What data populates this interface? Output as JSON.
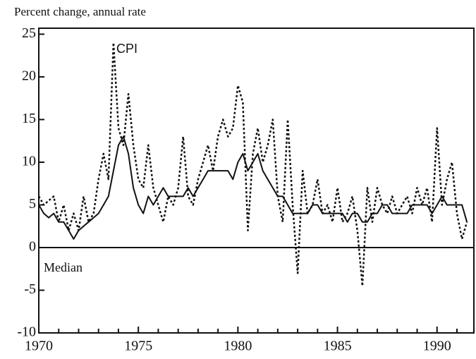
{
  "chart_data": {
    "type": "line",
    "y_label": "Percent change, annual rate",
    "annotations": [
      "CPI",
      "Median"
    ],
    "x": [
      1970,
      1970.25,
      1970.5,
      1970.75,
      1971,
      1971.25,
      1971.5,
      1971.75,
      1972,
      1972.25,
      1972.5,
      1972.75,
      1973,
      1973.25,
      1973.5,
      1973.75,
      1974,
      1974.25,
      1974.5,
      1974.75,
      1975,
      1975.25,
      1975.5,
      1975.75,
      1976,
      1976.25,
      1976.5,
      1976.75,
      1977,
      1977.25,
      1977.5,
      1977.75,
      1978,
      1978.25,
      1978.5,
      1978.75,
      1979,
      1979.25,
      1979.5,
      1979.75,
      1980,
      1980.25,
      1980.5,
      1980.75,
      1981,
      1981.25,
      1981.5,
      1981.75,
      1982,
      1982.25,
      1982.5,
      1982.75,
      1983,
      1983.25,
      1983.5,
      1983.75,
      1984,
      1984.25,
      1984.5,
      1984.75,
      1985,
      1985.25,
      1985.5,
      1985.75,
      1986,
      1986.25,
      1986.5,
      1986.75,
      1987,
      1987.25,
      1987.5,
      1987.75,
      1988,
      1988.25,
      1988.5,
      1988.75,
      1989,
      1989.25,
      1989.5,
      1989.75,
      1990,
      1990.25,
      1990.5,
      1990.75,
      1991,
      1991.25,
      1991.5
    ],
    "series": [
      {
        "name": "CPI",
        "color": "#111111",
        "style": "dotted",
        "values": [
          6,
          5,
          5.5,
          6,
          3,
          5,
          2,
          4,
          2,
          6,
          3,
          4,
          8,
          11,
          8,
          24,
          14,
          12,
          18,
          12,
          8,
          7,
          12,
          7,
          5,
          3,
          6,
          5,
          7,
          13,
          6,
          5,
          8,
          10,
          12,
          9,
          13,
          15,
          13,
          14,
          19,
          17,
          2,
          11,
          14,
          10,
          12,
          15,
          6,
          3,
          15,
          5,
          -3,
          9,
          4,
          5,
          8,
          4,
          5,
          3,
          7,
          3,
          4,
          6,
          2,
          -4.5,
          7,
          3,
          7,
          5,
          4,
          6,
          4,
          5,
          6,
          4,
          7,
          5,
          7,
          3,
          14,
          5,
          8,
          10,
          4,
          1,
          3
        ]
      },
      {
        "name": "Median",
        "color": "#111111",
        "style": "solid",
        "values": [
          5,
          4,
          3.5,
          4,
          3,
          3,
          2,
          1,
          2,
          2.5,
          3,
          3.5,
          4,
          5,
          6,
          9,
          12,
          13,
          11,
          7,
          5,
          4,
          6,
          5,
          6,
          7,
          6,
          6,
          6,
          6,
          7,
          6,
          7,
          8,
          9,
          9,
          9,
          9,
          9,
          8,
          10,
          11,
          9,
          10,
          11,
          9,
          8,
          7,
          6,
          6,
          5,
          4,
          4,
          4,
          4,
          5,
          5,
          4,
          4,
          4,
          4,
          4,
          3,
          4,
          4,
          3,
          3,
          4,
          4,
          5,
          5,
          4,
          4,
          4,
          4,
          5,
          5,
          5,
          5,
          4,
          5,
          6,
          5,
          5,
          5,
          5,
          3
        ]
      }
    ],
    "reference_line": 0,
    "xlim": [
      1970,
      1991.85
    ],
    "ylim": [
      -10,
      25.7
    ],
    "xticks": [
      1970,
      1975,
      1980,
      1985,
      1990
    ],
    "xminorticks": [
      1971,
      1972,
      1973,
      1974,
      1976,
      1977,
      1978,
      1979,
      1981,
      1982,
      1983,
      1984,
      1986,
      1987,
      1988,
      1989,
      1991
    ],
    "yticks": [
      -10,
      -5,
      0,
      5,
      10,
      15,
      20,
      25
    ]
  }
}
